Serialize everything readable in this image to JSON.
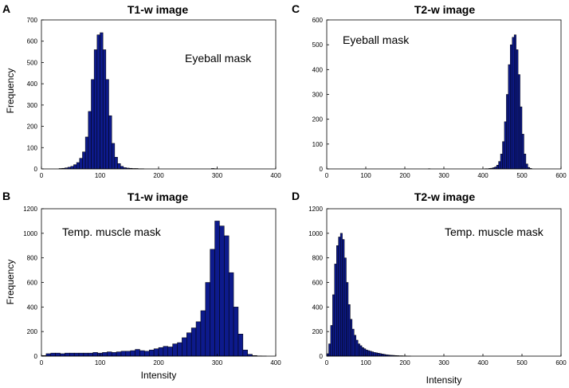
{
  "colors": {
    "bar_fill": "#0d1a8c",
    "bar_edge": "#000000",
    "axes": "#000000"
  },
  "chart_data": [
    {
      "letter": "A",
      "type": "bar",
      "title": "T1-w image",
      "annotation": "Eyeball mask",
      "xlabel": "",
      "ylabel": "Frequency",
      "xlim": [
        0,
        400
      ],
      "ylim": [
        0,
        700
      ],
      "xticks": [
        0,
        100,
        200,
        300,
        400
      ],
      "yticks": [
        0,
        100,
        200,
        300,
        400,
        500,
        600,
        700
      ],
      "bin_width": 5,
      "x": [
        30,
        35,
        40,
        45,
        50,
        55,
        60,
        65,
        70,
        75,
        80,
        85,
        90,
        95,
        100,
        105,
        110,
        115,
        120,
        125,
        130,
        135,
        140,
        145,
        150,
        155,
        160,
        165,
        170,
        290,
        295
      ],
      "values": [
        2,
        3,
        5,
        8,
        12,
        20,
        30,
        50,
        80,
        150,
        270,
        420,
        560,
        630,
        640,
        560,
        420,
        250,
        120,
        55,
        25,
        12,
        6,
        4,
        3,
        2,
        2,
        1,
        1,
        2,
        1
      ]
    },
    {
      "letter": "C",
      "type": "bar",
      "title": "T2-w image",
      "annotation": "Eyeball mask",
      "xlabel": "",
      "ylabel": "",
      "xlim": [
        0,
        600
      ],
      "ylim": [
        0,
        600
      ],
      "xticks": [
        0,
        100,
        200,
        300,
        400,
        500,
        600
      ],
      "yticks": [
        0,
        100,
        200,
        300,
        400,
        500,
        600
      ],
      "bin_width": 5,
      "x": [
        260,
        405,
        410,
        415,
        420,
        425,
        430,
        435,
        440,
        445,
        450,
        455,
        460,
        465,
        470,
        475,
        480,
        485,
        490,
        495,
        500,
        505,
        510,
        515,
        520
      ],
      "values": [
        1,
        1,
        1,
        2,
        3,
        5,
        8,
        15,
        30,
        60,
        110,
        190,
        300,
        420,
        500,
        530,
        540,
        480,
        380,
        250,
        140,
        60,
        20,
        6,
        2
      ]
    },
    {
      "letter": "B",
      "type": "bar",
      "title": "T1-w image",
      "annotation": "Temp. muscle mask",
      "xlabel": "Intensity",
      "ylabel": "Frequency",
      "xlim": [
        0,
        400
      ],
      "ylim": [
        0,
        1200
      ],
      "xticks": [
        0,
        100,
        200,
        300,
        400
      ],
      "yticks": [
        0,
        200,
        400,
        600,
        800,
        1000,
        1200
      ],
      "bin_width": 8,
      "x": [
        0,
        8,
        16,
        24,
        32,
        40,
        48,
        56,
        64,
        72,
        80,
        88,
        96,
        104,
        112,
        120,
        128,
        136,
        144,
        152,
        160,
        168,
        176,
        184,
        192,
        200,
        208,
        216,
        224,
        232,
        240,
        248,
        256,
        264,
        272,
        280,
        288,
        296,
        304,
        312,
        320,
        328,
        336,
        344,
        352,
        360,
        368,
        376
      ],
      "values": [
        5,
        20,
        25,
        25,
        20,
        25,
        25,
        25,
        25,
        25,
        25,
        30,
        25,
        30,
        35,
        30,
        35,
        40,
        40,
        45,
        55,
        45,
        40,
        50,
        60,
        70,
        80,
        75,
        100,
        110,
        150,
        190,
        230,
        280,
        370,
        600,
        870,
        1100,
        1060,
        980,
        680,
        400,
        180,
        50,
        15,
        5,
        2,
        1
      ]
    },
    {
      "letter": "D",
      "type": "bar",
      "title": "T2-w image",
      "annotation": "Temp. muscle mask",
      "xlabel": "Intensity",
      "ylabel": "",
      "xlim": [
        0,
        600
      ],
      "ylim": [
        0,
        1200
      ],
      "xticks": [
        0,
        100,
        200,
        300,
        400,
        500,
        600
      ],
      "yticks": [
        0,
        200,
        400,
        600,
        800,
        1000,
        1200
      ],
      "bin_width": 5,
      "x": [
        0,
        5,
        10,
        15,
        20,
        25,
        30,
        35,
        40,
        45,
        50,
        55,
        60,
        65,
        70,
        75,
        80,
        85,
        90,
        95,
        100,
        105,
        110,
        115,
        120,
        125,
        130,
        135,
        140,
        145,
        150,
        155,
        160,
        165,
        170,
        175,
        180,
        185,
        190,
        195,
        200,
        205,
        210
      ],
      "values": [
        20,
        100,
        250,
        500,
        750,
        900,
        970,
        1000,
        950,
        800,
        600,
        420,
        300,
        220,
        170,
        130,
        100,
        85,
        70,
        60,
        50,
        45,
        40,
        35,
        30,
        27,
        24,
        21,
        18,
        15,
        12,
        10,
        8,
        7,
        6,
        5,
        4,
        3,
        3,
        2,
        2,
        1,
        1
      ]
    }
  ]
}
